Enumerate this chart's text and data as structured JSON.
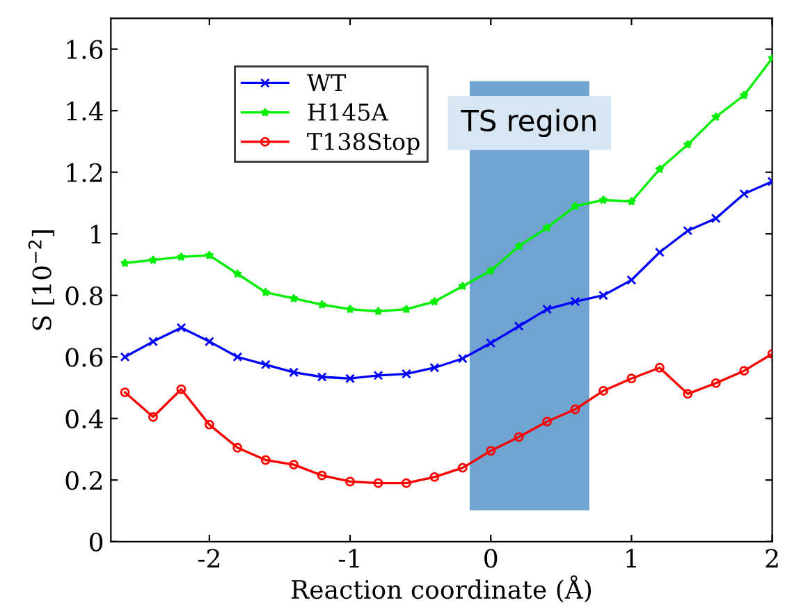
{
  "chart_data": {
    "type": "line",
    "xlabel": "Reaction coordinate (Å)",
    "ylabel": "S [10$^{−2}$]",
    "xlim": [
      -2.7,
      2
    ],
    "ylim": [
      0,
      1.7
    ],
    "xticks": [
      {
        "value": -2,
        "label": "-2"
      },
      {
        "value": -1,
        "label": "-1"
      },
      0,
      1,
      2
    ],
    "yticks": [
      0,
      0.2,
      0.4,
      0.6,
      0.8,
      1,
      1.2,
      1.4,
      1.6
    ],
    "grid": false,
    "legend": "top left",
    "line_style": "solid",
    "x": [
      -2.6,
      -2.4,
      -2.2,
      -2.0,
      -1.8,
      -1.6,
      -1.4,
      -1.2,
      -1.0,
      -0.8,
      -0.6,
      -0.4,
      -0.2,
      0,
      0.2,
      0.4,
      0.6,
      0.8,
      1.0,
      1.2,
      1.4,
      1.6,
      1.8,
      2.0
    ],
    "series": [
      {
        "name": "WT",
        "color": "#0000ff",
        "marker": "cross",
        "values": [
          0.6,
          0.65,
          0.695,
          0.65,
          0.6,
          0.575,
          0.55,
          0.535,
          0.53,
          0.54,
          0.545,
          0.565,
          0.595,
          0.645,
          0.7,
          0.755,
          0.78,
          0.8,
          0.85,
          0.94,
          1.01,
          1.05,
          1.13,
          1.17
        ]
      },
      {
        "name": "H145A",
        "color": "#00ee00",
        "marker": "star",
        "values": [
          0.905,
          0.915,
          0.925,
          0.93,
          0.87,
          0.81,
          0.79,
          0.77,
          0.755,
          0.748,
          0.755,
          0.78,
          0.83,
          0.88,
          0.96,
          1.02,
          1.09,
          1.11,
          1.105,
          1.21,
          1.29,
          1.38,
          1.45,
          1.57
        ]
      },
      {
        "name": "T138Stop",
        "color": "#ff0000",
        "marker": "circle",
        "values": [
          0.485,
          0.405,
          0.495,
          0.38,
          0.305,
          0.265,
          0.25,
          0.215,
          0.195,
          0.19,
          0.19,
          0.21,
          0.24,
          0.295,
          0.34,
          0.39,
          0.43,
          0.49,
          0.53,
          0.565,
          0.48,
          0.515,
          0.555,
          0.61
        ]
      }
    ],
    "bands": [
      {
        "axis": "x",
        "from": -0.15,
        "to": 0.7,
        "label": "TS region",
        "color": "#6fa3d0"
      }
    ]
  }
}
